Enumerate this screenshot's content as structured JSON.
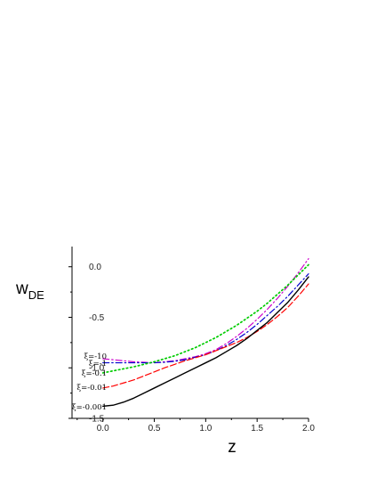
{
  "chart_data": {
    "type": "line",
    "title": "",
    "xlabel": "z",
    "ylabel": {
      "main": "w",
      "sub": "DE"
    },
    "xlim": [
      -0.3,
      2.0
    ],
    "ylim": [
      -1.5,
      0.2
    ],
    "xticks": [
      0.0,
      0.5,
      1.0,
      1.5,
      2.0
    ],
    "xtick_labels": [
      "0.0",
      "0.5",
      "1.0",
      "1.5",
      "2.0"
    ],
    "yticks": [
      -1.5,
      -1.0,
      -0.5,
      0.0
    ],
    "ytick_labels": [
      "-1.5",
      "-1.0",
      "-0.5",
      "0.0"
    ],
    "grid": false,
    "legend": "inline-left",
    "x": [
      0.0,
      0.1,
      0.2,
      0.3,
      0.4,
      0.5,
      0.6,
      0.7,
      0.8,
      0.9,
      1.0,
      1.1,
      1.2,
      1.3,
      1.4,
      1.5,
      1.6,
      1.7,
      1.8,
      1.9,
      2.0
    ],
    "series": [
      {
        "name": "ξ=-10",
        "color": "#cc00cc",
        "dash": "dashdot",
        "values": [
          -0.91,
          -0.92,
          -0.93,
          -0.94,
          -0.945,
          -0.95,
          -0.94,
          -0.93,
          -0.91,
          -0.89,
          -0.86,
          -0.82,
          -0.76,
          -0.69,
          -0.61,
          -0.52,
          -0.42,
          -0.31,
          -0.19,
          -0.06,
          0.08
        ]
      },
      {
        "name": "ξ=-1",
        "color": "#0000cc",
        "dash": "dashdot",
        "values": [
          -0.95,
          -0.95,
          -0.95,
          -0.95,
          -0.95,
          -0.95,
          -0.945,
          -0.935,
          -0.92,
          -0.895,
          -0.87,
          -0.83,
          -0.78,
          -0.72,
          -0.65,
          -0.57,
          -0.48,
          -0.39,
          -0.29,
          -0.18,
          -0.07
        ]
      },
      {
        "name": "ξ=-0.1",
        "color": "#00cc00",
        "dash": "dotted",
        "values": [
          -1.05,
          -1.03,
          -1.01,
          -0.99,
          -0.965,
          -0.94,
          -0.91,
          -0.88,
          -0.84,
          -0.8,
          -0.75,
          -0.7,
          -0.64,
          -0.58,
          -0.51,
          -0.44,
          -0.36,
          -0.27,
          -0.18,
          -0.08,
          0.02
        ]
      },
      {
        "name": "ξ=-0.01",
        "color": "#ff0000",
        "dash": "dashed",
        "values": [
          -1.2,
          -1.18,
          -1.15,
          -1.12,
          -1.08,
          -1.04,
          -1.0,
          -0.965,
          -0.93,
          -0.9,
          -0.87,
          -0.83,
          -0.79,
          -0.75,
          -0.7,
          -0.64,
          -0.57,
          -0.49,
          -0.4,
          -0.29,
          -0.17
        ]
      },
      {
        "name": "ξ=-0.001",
        "color": "#000000",
        "dash": "solid",
        "values": [
          -1.38,
          -1.37,
          -1.34,
          -1.3,
          -1.25,
          -1.2,
          -1.15,
          -1.1,
          -1.05,
          -1.0,
          -0.95,
          -0.9,
          -0.84,
          -0.78,
          -0.71,
          -0.63,
          -0.55,
          -0.45,
          -0.35,
          -0.23,
          -0.1
        ]
      }
    ]
  }
}
